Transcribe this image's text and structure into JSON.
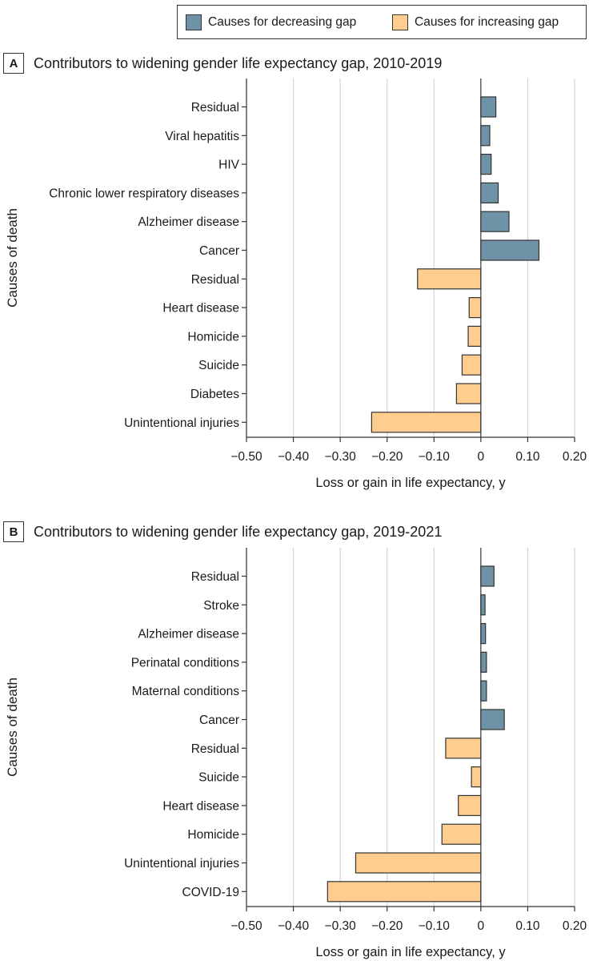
{
  "legend": {
    "decreasing_label": "Causes for decreasing gap",
    "increasing_label": "Causes for increasing gap"
  },
  "colors": {
    "decreasing": "#6e93a6",
    "increasing": "#ffcd8e",
    "border": "#333333",
    "grid": "#d4d4d4"
  },
  "chart_data": [
    {
      "type": "bar",
      "orientation": "horizontal",
      "panel_letter": "A",
      "title": "Contributors to widening gender life expectancy gap, 2010-2019",
      "ylabel": "Causes of death",
      "xlabel": "Loss or gain in life expectancy, y",
      "xlim": [
        -0.5,
        0.2
      ],
      "xticks": [
        -0.5,
        -0.4,
        -0.3,
        -0.2,
        -0.1,
        0,
        0.1,
        0.2
      ],
      "xtick_labels": [
        "−0.50",
        "−0.40",
        "−0.30",
        "−0.20",
        "−0.10",
        "0",
        "0.10",
        "0.20"
      ],
      "grid": "vertical",
      "categories": [
        "Residual",
        "Viral hepatitis",
        "HIV",
        "Chronic lower respiratory diseases",
        "Alzheimer disease",
        "Cancer",
        "Residual",
        "Heart disease",
        "Homicide",
        "Suicide",
        "Diabetes",
        "Unintentional injuries"
      ],
      "values": [
        0.032,
        0.019,
        0.022,
        0.037,
        0.06,
        0.124,
        -0.135,
        -0.025,
        -0.027,
        -0.04,
        -0.052,
        -0.233
      ],
      "groups": [
        "decreasing",
        "decreasing",
        "decreasing",
        "decreasing",
        "decreasing",
        "decreasing",
        "increasing",
        "increasing",
        "increasing",
        "increasing",
        "increasing",
        "increasing"
      ]
    },
    {
      "type": "bar",
      "orientation": "horizontal",
      "panel_letter": "B",
      "title": "Contributors to widening gender life expectancy gap, 2019-2021",
      "ylabel": "Causes of death",
      "xlabel": "Loss or gain in life expectancy, y",
      "xlim": [
        -0.5,
        0.2
      ],
      "xticks": [
        -0.5,
        -0.4,
        -0.3,
        -0.2,
        -0.1,
        0,
        0.1,
        0.2
      ],
      "xtick_labels": [
        "−0.50",
        "−0.40",
        "−0.30",
        "−0.20",
        "−0.10",
        "0",
        "0.10",
        "0.20"
      ],
      "grid": "vertical",
      "categories": [
        "Residual",
        "Stroke",
        "Alzheimer disease",
        "Perinatal conditions",
        "Maternal conditions",
        "Cancer",
        "Residual",
        "Suicide",
        "Heart disease",
        "Homicide",
        "Unintentional injuries",
        "COVID-19"
      ],
      "values": [
        0.028,
        0.009,
        0.01,
        0.012,
        0.012,
        0.05,
        -0.075,
        -0.02,
        -0.048,
        -0.083,
        -0.267,
        -0.327
      ],
      "groups": [
        "decreasing",
        "decreasing",
        "decreasing",
        "decreasing",
        "decreasing",
        "decreasing",
        "increasing",
        "increasing",
        "increasing",
        "increasing",
        "increasing",
        "increasing"
      ]
    }
  ]
}
